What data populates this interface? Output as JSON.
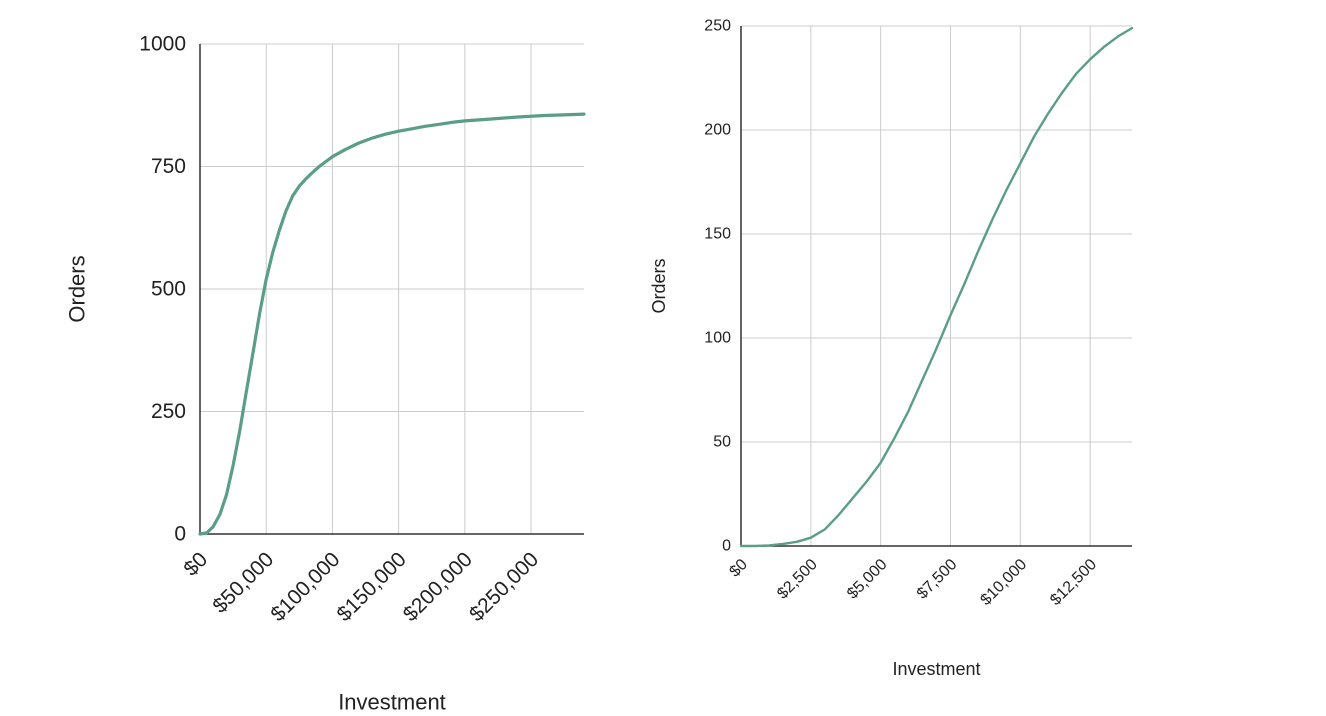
{
  "chart_data": [
    {
      "type": "line",
      "xlabel": "Investment",
      "ylabel": "Orders",
      "xlim": [
        0,
        290000
      ],
      "ylim": [
        0,
        1000
      ],
      "x_ticks": [
        0,
        50000,
        100000,
        150000,
        200000,
        250000
      ],
      "x_tick_labels": [
        "$0",
        "$50,000",
        "$100,000",
        "$150,000",
        "$200,000",
        "$250,000"
      ],
      "y_ticks": [
        0,
        250,
        500,
        750,
        1000
      ],
      "y_tick_labels": [
        "0",
        "250",
        "500",
        "750",
        "1000"
      ],
      "grid": true,
      "series": [
        {
          "color": "#5b9e86",
          "x": [
            0,
            5000,
            10000,
            15000,
            20000,
            25000,
            30000,
            35000,
            40000,
            45000,
            50000,
            55000,
            60000,
            65000,
            70000,
            75000,
            80000,
            85000,
            90000,
            95000,
            100000,
            110000,
            120000,
            130000,
            140000,
            150000,
            160000,
            170000,
            180000,
            190000,
            200000,
            220000,
            240000,
            260000,
            280000,
            290000
          ],
          "y": [
            0,
            2,
            15,
            40,
            80,
            140,
            210,
            290,
            370,
            450,
            520,
            575,
            620,
            660,
            690,
            710,
            725,
            738,
            750,
            760,
            770,
            785,
            798,
            808,
            816,
            822,
            827,
            832,
            836,
            840,
            843,
            847,
            851,
            854,
            856,
            857
          ]
        }
      ]
    },
    {
      "type": "line",
      "xlabel": "Investment",
      "ylabel": "Orders",
      "xlim": [
        0,
        14000
      ],
      "ylim": [
        0,
        250
      ],
      "x_ticks": [
        0,
        2500,
        5000,
        7500,
        10000,
        12500
      ],
      "x_tick_labels": [
        "$0",
        "$2,500",
        "$5,000",
        "$7,500",
        "$10,000",
        "$12,500"
      ],
      "y_ticks": [
        0,
        50,
        100,
        150,
        200,
        250
      ],
      "y_tick_labels": [
        "0",
        "50",
        "100",
        "150",
        "200",
        "250"
      ],
      "grid": true,
      "series": [
        {
          "color": "#5b9e86",
          "x": [
            0,
            500,
            1000,
            1500,
            2000,
            2500,
            3000,
            3500,
            4000,
            4500,
            5000,
            5500,
            6000,
            6500,
            7000,
            7500,
            8000,
            8500,
            9000,
            9500,
            10000,
            10500,
            11000,
            11500,
            12000,
            12500,
            13000,
            13500,
            14000
          ],
          "y": [
            0,
            0,
            0.3,
            1,
            2,
            4,
            8,
            15,
            23,
            31,
            40,
            52,
            65,
            80,
            95,
            111,
            126,
            142,
            157,
            171,
            184,
            197,
            208,
            218,
            227,
            234,
            240,
            245,
            249
          ]
        }
      ]
    }
  ]
}
